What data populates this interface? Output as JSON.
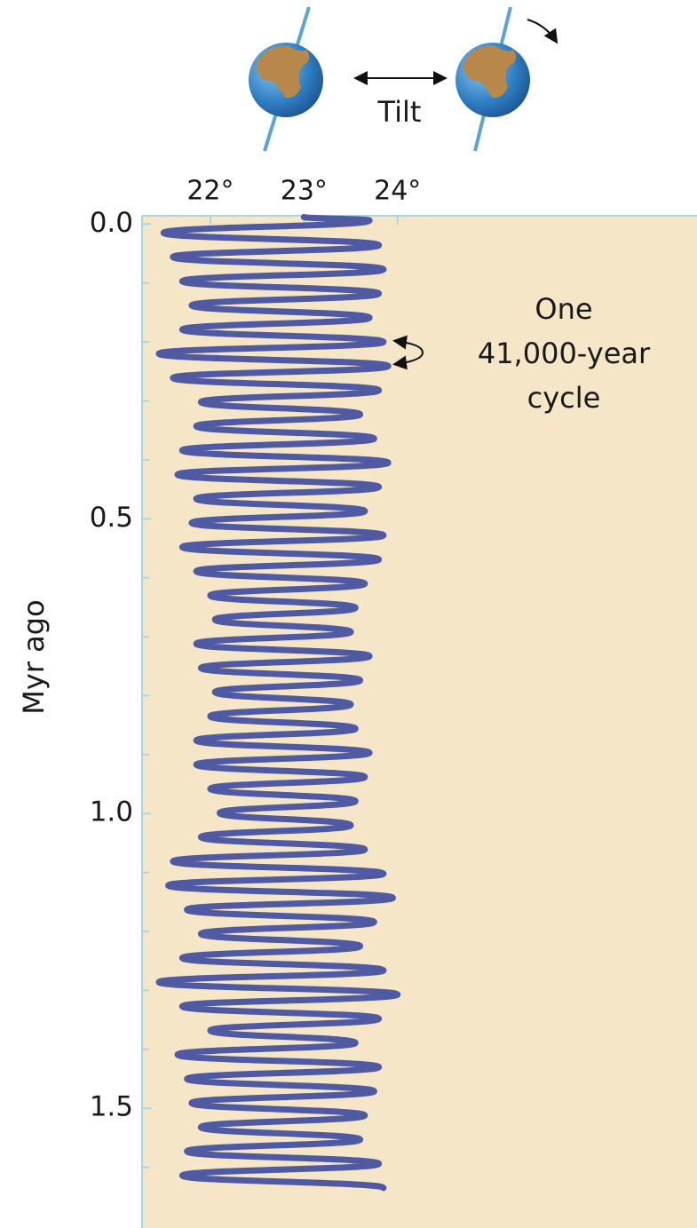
{
  "chart_data": {
    "type": "line",
    "orientation": "vertical",
    "ylabel": "Myr ago",
    "diagram_label": "Tilt",
    "annotation_lines": [
      "One",
      "41,000-year",
      "cycle"
    ],
    "x": [
      -0.012,
      -0.006,
      0.015,
      0.036,
      0.056,
      0.077,
      0.097,
      0.118,
      0.138,
      0.159,
      0.179,
      0.2,
      0.22,
      0.241,
      0.261,
      0.282,
      0.302,
      0.323,
      0.343,
      0.364,
      0.384,
      0.405,
      0.425,
      0.446,
      0.466,
      0.487,
      0.507,
      0.528,
      0.548,
      0.569,
      0.589,
      0.61,
      0.63,
      0.651,
      0.671,
      0.692,
      0.712,
      0.733,
      0.753,
      0.774,
      0.794,
      0.815,
      0.835,
      0.856,
      0.876,
      0.897,
      0.917,
      0.938,
      0.958,
      0.979,
      0.999,
      1.02,
      1.04,
      1.061,
      1.081,
      1.102,
      1.122,
      1.143,
      1.163,
      1.184,
      1.204,
      1.225,
      1.245,
      1.266,
      1.286,
      1.307,
      1.327,
      1.348,
      1.368,
      1.389,
      1.409,
      1.43,
      1.45,
      1.471,
      1.491,
      1.512,
      1.532,
      1.553,
      1.573,
      1.594,
      1.614,
      1.635
    ],
    "series": [
      {
        "color": "#4f5aa3",
        "values": [
          23.0,
          23.7,
          21.5,
          23.8,
          21.6,
          23.85,
          21.7,
          23.8,
          21.8,
          23.7,
          21.7,
          23.85,
          21.45,
          23.9,
          21.6,
          23.8,
          21.9,
          23.6,
          21.85,
          23.75,
          21.7,
          23.9,
          21.65,
          23.8,
          21.85,
          23.65,
          21.8,
          23.85,
          21.7,
          23.8,
          21.85,
          23.65,
          22.0,
          23.55,
          22.05,
          23.5,
          21.85,
          23.7,
          21.9,
          23.6,
          22.05,
          23.5,
          22.0,
          23.55,
          21.85,
          23.7,
          21.85,
          23.65,
          22.0,
          23.55,
          22.1,
          23.5,
          21.9,
          23.65,
          21.6,
          23.85,
          21.55,
          23.95,
          21.75,
          23.75,
          21.9,
          23.6,
          21.7,
          23.85,
          21.45,
          24.0,
          21.7,
          23.8,
          22.0,
          23.55,
          21.65,
          23.8,
          21.75,
          23.75,
          21.8,
          23.65,
          21.9,
          23.6,
          21.75,
          23.8,
          21.7,
          23.85
        ]
      }
    ],
    "xlim": [
      -0.014,
      1.703
    ],
    "xticks": [
      {
        "value": 0,
        "label": "0.0"
      },
      0.5,
      {
        "value": 1,
        "label": "1.0"
      },
      1.5
    ],
    "xticks_minor": [
      0.1,
      0.2,
      0.3,
      0.4,
      0.6,
      0.7,
      0.8,
      0.9,
      1.1,
      1.2,
      1.3,
      1.4,
      1.6
    ],
    "ylim": [
      21.27,
      27.2
    ],
    "yticks": [
      {
        "value": 22,
        "label": "22°"
      },
      {
        "value": 23,
        "label": "23°"
      },
      {
        "value": 24,
        "label": "24°"
      }
    ]
  }
}
